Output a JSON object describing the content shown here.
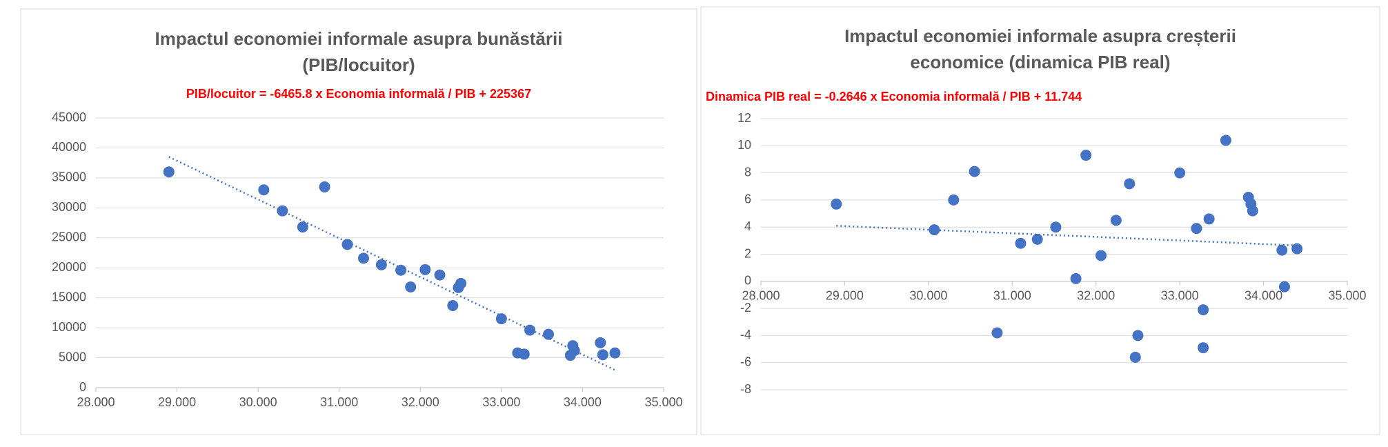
{
  "chart_data": [
    {
      "type": "scatter",
      "title": [
        "Impactul economiei informale asupra bunăstării",
        "(PIB/locuitor)"
      ],
      "x": [
        28.9,
        30.07,
        30.3,
        30.55,
        30.82,
        31.1,
        31.3,
        31.52,
        31.76,
        31.88,
        32.06,
        32.24,
        32.4,
        32.47,
        32.5,
        33.0,
        33.2,
        33.28,
        33.35,
        33.58,
        33.85,
        33.88,
        33.9,
        34.22,
        34.25,
        34.4
      ],
      "y": [
        36000,
        33000,
        29500,
        26800,
        33500,
        23900,
        21600,
        20500,
        19600,
        16800,
        19700,
        18800,
        13700,
        16700,
        17400,
        11500,
        5800,
        5600,
        9600,
        8900,
        5400,
        7000,
        6200,
        7500,
        5500,
        5800
      ],
      "color": "#4472c4",
      "trendline": {
        "label": "PIB/locuitor = -6465.8 x Economia informală / PIB + 225367",
        "slope": -6465.8,
        "intercept": 225367,
        "color": "#4472c4",
        "label_color": "#ff0000"
      },
      "xlim": [
        28,
        35
      ],
      "xticks": [
        {
          "value": 28,
          "label": "28.000"
        },
        {
          "value": 29,
          "label": "29.000"
        },
        {
          "value": 30,
          "label": "30.000"
        },
        {
          "value": 31,
          "label": "31.000"
        },
        {
          "value": 32,
          "label": "32.000"
        },
        {
          "value": 33,
          "label": "33.000"
        },
        {
          "value": 34,
          "label": "34.000"
        },
        {
          "value": 35,
          "label": "35.000"
        }
      ],
      "ylim": [
        0,
        45000
      ],
      "yticks": [
        0,
        5000,
        10000,
        15000,
        20000,
        25000,
        30000,
        35000,
        40000,
        45000
      ],
      "grid": true
    },
    {
      "type": "scatter",
      "title": [
        "Impactul economiei informale asupra creșterii",
        "economice (dinamica PIB real)"
      ],
      "x": [
        28.9,
        30.07,
        30.3,
        30.55,
        30.82,
        31.1,
        31.3,
        31.52,
        31.76,
        31.88,
        32.06,
        32.24,
        32.4,
        32.47,
        32.5,
        33.0,
        33.2,
        33.28,
        33.28,
        33.35,
        33.55,
        33.82,
        33.85,
        33.87,
        34.22,
        34.25,
        34.4
      ],
      "y": [
        5.7,
        3.8,
        6.0,
        8.1,
        -3.8,
        2.8,
        3.1,
        4.0,
        0.2,
        9.3,
        1.9,
        4.5,
        7.2,
        -5.6,
        -4.0,
        8.0,
        3.9,
        -2.1,
        -4.9,
        4.6,
        10.4,
        6.2,
        5.7,
        5.2,
        2.3,
        -0.4,
        2.4
      ],
      "color": "#4472c4",
      "trendline": {
        "label": "Dinamica PIB real = -0.2646 x Economia informală / PIB + 11.744",
        "slope": -0.2646,
        "intercept": 11.744,
        "color": "#4472c4",
        "label_color": "#ff0000"
      },
      "xlim": [
        28,
        35
      ],
      "xticks": [
        {
          "value": 28,
          "label": "28.000"
        },
        {
          "value": 29,
          "label": "29.000"
        },
        {
          "value": 30,
          "label": "30.000"
        },
        {
          "value": 31,
          "label": "31.000"
        },
        {
          "value": 32,
          "label": "32.000"
        },
        {
          "value": 33,
          "label": "33.000"
        },
        {
          "value": 34,
          "label": "34.000"
        },
        {
          "value": 35,
          "label": "35.000"
        }
      ],
      "ylim": [
        -8,
        12
      ],
      "yticks": [
        -8,
        -6,
        -4,
        -2,
        0,
        2,
        4,
        6,
        8,
        10,
        12
      ],
      "grid": true
    }
  ]
}
